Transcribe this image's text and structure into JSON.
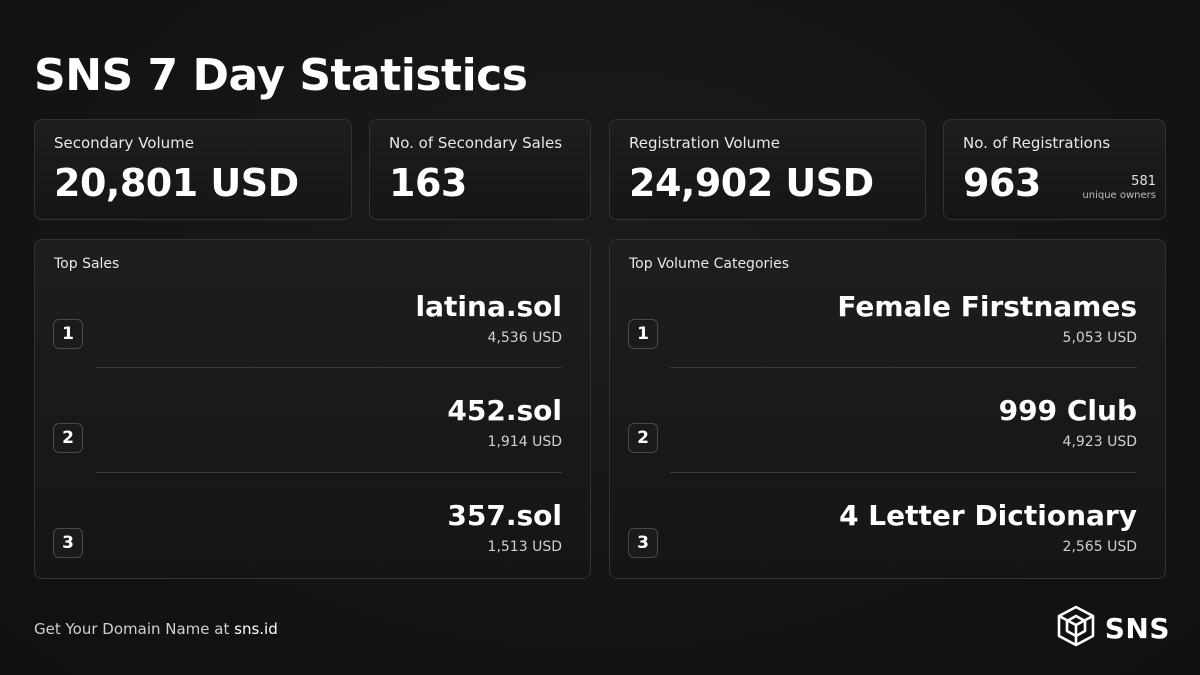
{
  "title": "SNS 7 Day Statistics",
  "stats": [
    {
      "label": "Secondary Volume",
      "value": "20,801 USD"
    },
    {
      "label": "No. of Secondary Sales",
      "value": "163"
    },
    {
      "label": "Registration Volume",
      "value": "24,902 USD"
    },
    {
      "label": "No. of Registrations",
      "value": "963",
      "unique_count": "581",
      "unique_label": "unique owners"
    }
  ],
  "top_sales": {
    "title": "Top Sales",
    "items": [
      {
        "rank": "1",
        "name": "latina.sol",
        "amount": "4,536 USD"
      },
      {
        "rank": "2",
        "name": "452.sol",
        "amount": "1,914 USD"
      },
      {
        "rank": "3",
        "name": "357.sol",
        "amount": "1,513 USD"
      }
    ]
  },
  "top_categories": {
    "title": "Top Volume Categories",
    "items": [
      {
        "rank": "1",
        "name": "Female Firstnames",
        "amount": "5,053 USD"
      },
      {
        "rank": "2",
        "name": "999 Club",
        "amount": "4,923 USD"
      },
      {
        "rank": "3",
        "name": "4 Letter Dictionary",
        "amount": "2,565 USD"
      }
    ]
  },
  "footer": {
    "text": "Get Your Domain Name at ",
    "site": "sns.id"
  },
  "brand": {
    "name": "SNS",
    "icon": "sns-cube-logo-icon"
  }
}
